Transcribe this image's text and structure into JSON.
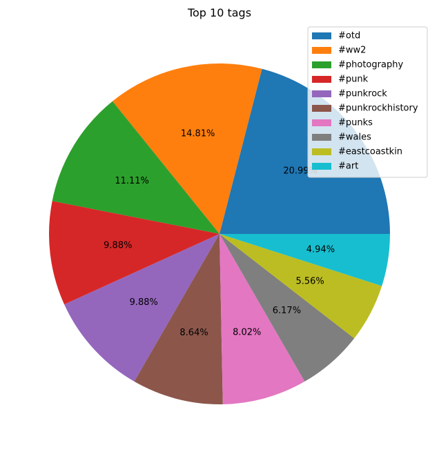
{
  "chart_data": {
    "type": "pie",
    "title": "Top 10 tags",
    "categories": [
      "#otd",
      "#ww2",
      "#photography",
      "#punk",
      "#punkrock",
      "#punkrockhistory",
      "#punks",
      "#wales",
      "#eastcoastkin",
      "#art"
    ],
    "values": [
      20.99,
      14.81,
      11.11,
      9.88,
      9.88,
      8.64,
      8.02,
      6.17,
      5.56,
      4.94
    ],
    "value_labels": [
      "20.99%",
      "14.81%",
      "11.11%",
      "9.88%",
      "9.88%",
      "8.64%",
      "8.02%",
      "6.17%",
      "5.56%",
      "4.94%"
    ],
    "colors": [
      "#1f77b4",
      "#ff7f0e",
      "#2ca02c",
      "#d62728",
      "#9467bd",
      "#8c564b",
      "#e377c2",
      "#7f7f7f",
      "#bcbd22",
      "#17becf"
    ],
    "start_angle_deg": 0,
    "direction": "counterclockwise",
    "legend_position": "top-right"
  }
}
